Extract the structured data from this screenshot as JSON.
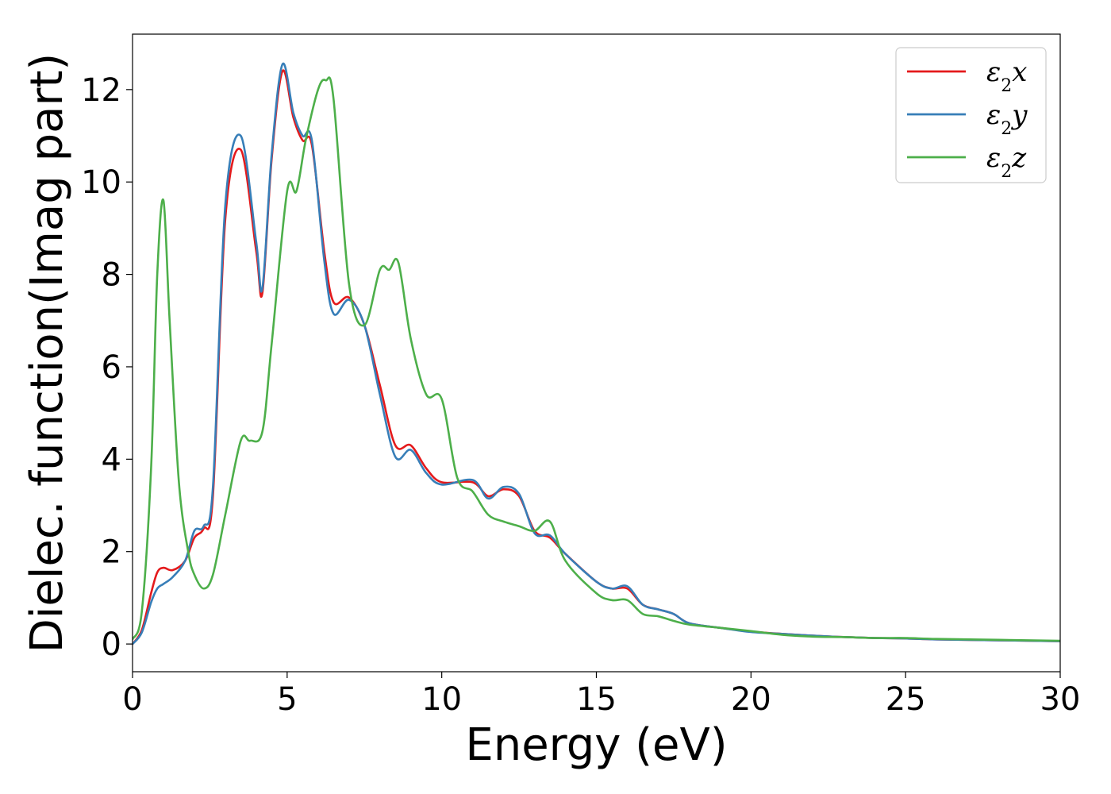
{
  "chart_data": {
    "type": "line",
    "xlabel": "Energy (eV)",
    "ylabel": "Dielec. function(Imag part)",
    "xlim": [
      0,
      30
    ],
    "ylim": [
      -0.6,
      13.2
    ],
    "xticks": [
      0,
      5,
      10,
      15,
      20,
      25,
      30
    ],
    "yticks": [
      0,
      2,
      4,
      6,
      8,
      10,
      12
    ],
    "grid": false,
    "legend_position": "top-right",
    "series": [
      {
        "name": "ε",
        "sub": "2",
        "suffix": "x",
        "color": "#e41a1c",
        "x": [
          0,
          0.3,
          0.6,
          0.8,
          1.0,
          1.3,
          1.7,
          2.0,
          2.3,
          2.6,
          3.0,
          3.5,
          4.0,
          4.2,
          4.5,
          4.85,
          5.2,
          5.5,
          5.8,
          6.2,
          6.5,
          7.0,
          7.5,
          8.0,
          8.5,
          9.0,
          9.5,
          10.0,
          11.0,
          11.5,
          12.0,
          12.5,
          13.0,
          13.5,
          14.0,
          15.0,
          15.5,
          16.0,
          16.5,
          17.0,
          17.5,
          18.0,
          19.0,
          20.0,
          21.0,
          22.0,
          23.0,
          24.0,
          25.0,
          26.0,
          28.0,
          30.0
        ],
        "values": [
          0.0,
          0.3,
          1.1,
          1.55,
          1.65,
          1.6,
          1.8,
          2.3,
          2.5,
          3.2,
          9.2,
          10.7,
          8.5,
          7.6,
          10.5,
          12.4,
          11.4,
          10.9,
          10.8,
          8.5,
          7.4,
          7.5,
          6.9,
          5.6,
          4.3,
          4.3,
          3.8,
          3.5,
          3.5,
          3.2,
          3.35,
          3.2,
          2.45,
          2.3,
          1.95,
          1.35,
          1.2,
          1.2,
          0.85,
          0.75,
          0.65,
          0.45,
          0.35,
          0.27,
          0.22,
          0.18,
          0.15,
          0.13,
          0.12,
          0.1,
          0.08,
          0.06
        ]
      },
      {
        "name": "ε",
        "sub": "2",
        "suffix": "y",
        "color": "#377eb8",
        "x": [
          0,
          0.3,
          0.6,
          0.8,
          1.0,
          1.3,
          1.7,
          2.0,
          2.3,
          2.6,
          3.0,
          3.5,
          4.0,
          4.2,
          4.5,
          4.85,
          5.2,
          5.5,
          5.8,
          6.2,
          6.5,
          7.0,
          7.5,
          8.0,
          8.5,
          9.0,
          9.5,
          10.0,
          11.0,
          11.5,
          12.0,
          12.5,
          13.0,
          13.5,
          14.0,
          15.0,
          15.5,
          16.0,
          16.5,
          17.0,
          17.5,
          18.0,
          19.0,
          20.0,
          21.0,
          22.0,
          23.0,
          24.0,
          25.0,
          26.0,
          28.0,
          30.0
        ],
        "values": [
          0.0,
          0.25,
          0.9,
          1.2,
          1.3,
          1.45,
          1.8,
          2.45,
          2.55,
          3.4,
          9.5,
          11.0,
          8.7,
          7.7,
          10.6,
          12.55,
          11.5,
          11.0,
          10.9,
          8.3,
          7.15,
          7.45,
          6.9,
          5.4,
          4.05,
          4.2,
          3.7,
          3.45,
          3.55,
          3.15,
          3.4,
          3.25,
          2.4,
          2.35,
          1.95,
          1.35,
          1.2,
          1.25,
          0.85,
          0.75,
          0.65,
          0.45,
          0.35,
          0.26,
          0.22,
          0.18,
          0.15,
          0.13,
          0.12,
          0.1,
          0.08,
          0.06
        ]
      },
      {
        "name": "ε",
        "sub": "2",
        "suffix": "z",
        "color": "#4daf4a",
        "x": [
          0,
          0.3,
          0.6,
          0.8,
          1.0,
          1.2,
          1.5,
          1.8,
          2.0,
          2.3,
          2.6,
          3.0,
          3.5,
          3.8,
          4.2,
          4.5,
          5.0,
          5.3,
          5.6,
          6.0,
          6.25,
          6.5,
          7.0,
          7.5,
          8.0,
          8.3,
          8.6,
          9.0,
          9.5,
          10.0,
          10.5,
          11.0,
          11.5,
          12.0,
          12.5,
          13.0,
          13.5,
          14.0,
          15.0,
          15.5,
          16.0,
          16.5,
          17.0,
          17.5,
          18.0,
          19.0,
          20.0,
          21.0,
          22.0,
          23.0,
          24.0,
          25.0,
          26.0,
          28.0,
          30.0
        ],
        "values": [
          0.1,
          0.7,
          3.8,
          8.0,
          9.6,
          7.0,
          3.5,
          2.0,
          1.5,
          1.2,
          1.5,
          2.8,
          4.4,
          4.4,
          4.6,
          6.5,
          9.8,
          9.8,
          10.9,
          12.0,
          12.2,
          11.8,
          7.8,
          6.9,
          8.1,
          8.1,
          8.25,
          6.6,
          5.4,
          5.3,
          3.6,
          3.3,
          2.8,
          2.65,
          2.55,
          2.45,
          2.65,
          1.8,
          1.1,
          0.95,
          0.95,
          0.65,
          0.6,
          0.5,
          0.42,
          0.35,
          0.28,
          0.2,
          0.16,
          0.15,
          0.13,
          0.13,
          0.11,
          0.09,
          0.07
        ]
      }
    ]
  }
}
